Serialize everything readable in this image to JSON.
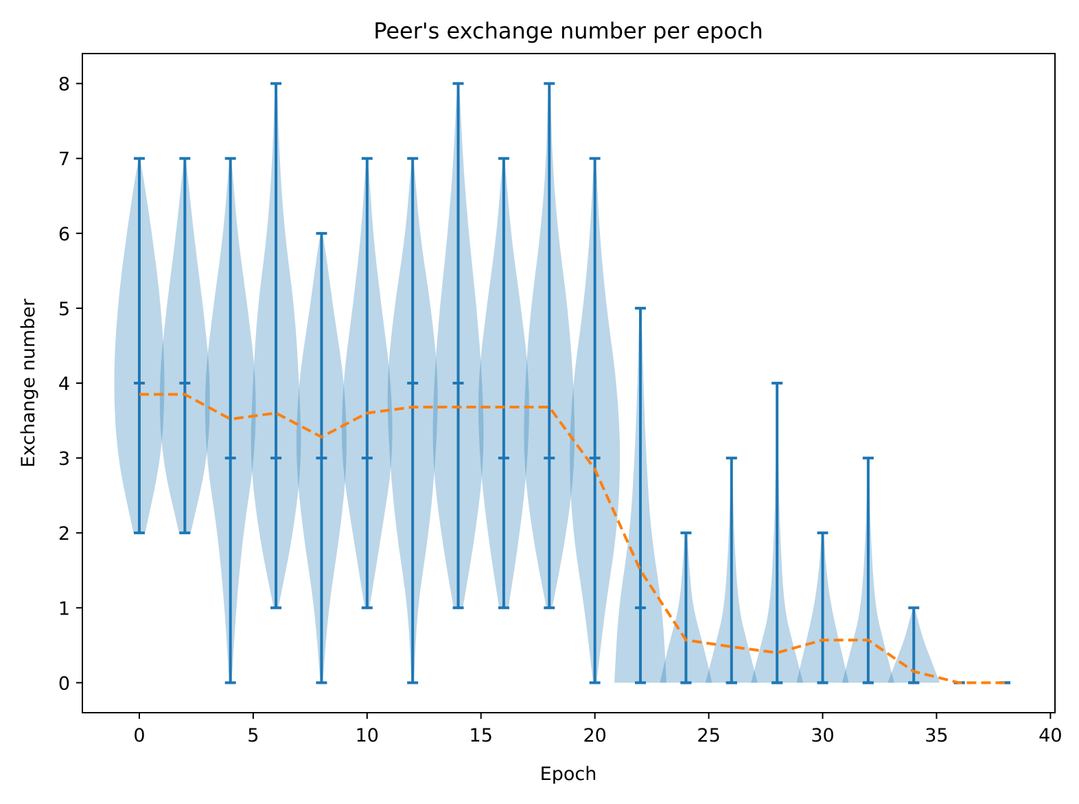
{
  "chart_data": {
    "type": "violin",
    "title": "Peer's exchange number per epoch",
    "xlabel": "Epoch",
    "ylabel": "Exchange number",
    "xlim": [
      -2.5,
      40.2
    ],
    "ylim": [
      -0.4,
      8.4
    ],
    "xticks": [
      0,
      5,
      10,
      15,
      20,
      25,
      30,
      35,
      40
    ],
    "yticks": [
      0,
      1,
      2,
      3,
      4,
      5,
      6,
      7,
      8
    ],
    "grid": false,
    "violins": [
      {
        "x": 0,
        "min": 2,
        "max": 7,
        "median": 4,
        "density": [
          [
            2,
            0.1
          ],
          [
            3,
            0.38
          ],
          [
            4,
            0.45
          ],
          [
            5,
            0.38
          ],
          [
            6,
            0.22
          ],
          [
            7,
            0.02
          ]
        ]
      },
      {
        "x": 2,
        "min": 2,
        "max": 7,
        "median": 4,
        "density": [
          [
            2,
            0.1
          ],
          [
            3,
            0.4
          ],
          [
            4,
            0.45
          ],
          [
            5,
            0.32
          ],
          [
            6,
            0.15
          ],
          [
            7,
            0.02
          ]
        ]
      },
      {
        "x": 4,
        "min": 0,
        "max": 7,
        "median": 3,
        "density": [
          [
            0,
            0.02
          ],
          [
            1,
            0.1
          ],
          [
            2,
            0.22
          ],
          [
            3,
            0.42
          ],
          [
            4,
            0.45
          ],
          [
            5,
            0.3
          ],
          [
            6,
            0.12
          ],
          [
            7,
            0.02
          ]
        ]
      },
      {
        "x": 6,
        "min": 1,
        "max": 8,
        "median": 3,
        "density": [
          [
            1,
            0.04
          ],
          [
            2,
            0.3
          ],
          [
            3,
            0.45
          ],
          [
            4,
            0.4
          ],
          [
            5,
            0.32
          ],
          [
            6,
            0.15
          ],
          [
            7,
            0.06
          ],
          [
            8,
            0.02
          ]
        ]
      },
      {
        "x": 8,
        "min": 0,
        "max": 6,
        "median": 3,
        "density": [
          [
            0,
            0.02
          ],
          [
            1,
            0.12
          ],
          [
            2,
            0.32
          ],
          [
            3,
            0.45
          ],
          [
            4,
            0.4
          ],
          [
            5,
            0.2
          ],
          [
            6,
            0.03
          ]
        ]
      },
      {
        "x": 10,
        "min": 1,
        "max": 7,
        "median": 3,
        "density": [
          [
            1,
            0.04
          ],
          [
            2,
            0.25
          ],
          [
            3,
            0.45
          ],
          [
            4,
            0.42
          ],
          [
            5,
            0.25
          ],
          [
            6,
            0.1
          ],
          [
            7,
            0.02
          ]
        ]
      },
      {
        "x": 12,
        "min": 0,
        "max": 7,
        "median": 4,
        "density": [
          [
            0,
            0.02
          ],
          [
            1,
            0.08
          ],
          [
            2,
            0.28
          ],
          [
            3,
            0.4
          ],
          [
            4,
            0.45
          ],
          [
            5,
            0.32
          ],
          [
            6,
            0.12
          ],
          [
            7,
            0.02
          ]
        ]
      },
      {
        "x": 14,
        "min": 1,
        "max": 8,
        "median": 4,
        "density": [
          [
            1,
            0.08
          ],
          [
            2,
            0.3
          ],
          [
            3,
            0.45
          ],
          [
            4,
            0.42
          ],
          [
            5,
            0.32
          ],
          [
            6,
            0.18
          ],
          [
            7,
            0.08
          ],
          [
            8,
            0.02
          ]
        ]
      },
      {
        "x": 16,
        "min": 1,
        "max": 7,
        "median": 3,
        "density": [
          [
            1,
            0.08
          ],
          [
            2,
            0.28
          ],
          [
            3,
            0.42
          ],
          [
            4,
            0.45
          ],
          [
            5,
            0.3
          ],
          [
            6,
            0.12
          ],
          [
            7,
            0.02
          ]
        ]
      },
      {
        "x": 18,
        "min": 1,
        "max": 8,
        "median": 3,
        "density": [
          [
            1,
            0.05
          ],
          [
            2,
            0.3
          ],
          [
            3,
            0.45
          ],
          [
            4,
            0.42
          ],
          [
            5,
            0.32
          ],
          [
            6,
            0.15
          ],
          [
            7,
            0.05
          ],
          [
            8,
            0.02
          ]
        ]
      },
      {
        "x": 20,
        "min": 0,
        "max": 7,
        "median": 3,
        "density": [
          [
            0,
            0.03
          ],
          [
            1,
            0.18
          ],
          [
            2,
            0.38
          ],
          [
            3,
            0.45
          ],
          [
            4,
            0.38
          ],
          [
            5,
            0.2
          ],
          [
            6,
            0.08
          ],
          [
            7,
            0.02
          ]
        ]
      },
      {
        "x": 22,
        "min": 0,
        "max": 5,
        "median": 1,
        "density": [
          [
            0,
            0.45
          ],
          [
            1,
            0.38
          ],
          [
            2,
            0.18
          ],
          [
            3,
            0.1
          ],
          [
            4,
            0.05
          ],
          [
            5,
            0.02
          ]
        ]
      },
      {
        "x": 24,
        "min": 0,
        "max": 2,
        "median": 0,
        "density": [
          [
            0,
            0.45
          ],
          [
            0.5,
            0.3
          ],
          [
            1,
            0.12
          ],
          [
            1.5,
            0.06
          ],
          [
            2,
            0.02
          ]
        ]
      },
      {
        "x": 26,
        "min": 0,
        "max": 3,
        "median": 0,
        "density": [
          [
            0,
            0.45
          ],
          [
            0.5,
            0.28
          ],
          [
            1,
            0.12
          ],
          [
            2,
            0.04
          ],
          [
            3,
            0.01
          ]
        ]
      },
      {
        "x": 28,
        "min": 0,
        "max": 4,
        "median": 0,
        "density": [
          [
            0,
            0.45
          ],
          [
            0.5,
            0.28
          ],
          [
            1,
            0.12
          ],
          [
            2,
            0.05
          ],
          [
            3,
            0.02
          ],
          [
            4,
            0.01
          ]
        ]
      },
      {
        "x": 30,
        "min": 0,
        "max": 2,
        "median": 0,
        "density": [
          [
            0,
            0.45
          ],
          [
            0.5,
            0.3
          ],
          [
            1,
            0.15
          ],
          [
            1.5,
            0.06
          ],
          [
            2,
            0.02
          ]
        ]
      },
      {
        "x": 32,
        "min": 0,
        "max": 3,
        "median": 0,
        "density": [
          [
            0,
            0.45
          ],
          [
            0.5,
            0.28
          ],
          [
            1,
            0.12
          ],
          [
            2,
            0.04
          ],
          [
            3,
            0.01
          ]
        ]
      },
      {
        "x": 34,
        "min": 0,
        "max": 1,
        "median": 0,
        "density": [
          [
            0,
            0.45
          ],
          [
            0.3,
            0.3
          ],
          [
            0.6,
            0.15
          ],
          [
            1,
            0.02
          ]
        ]
      },
      {
        "x": 36,
        "min": 0,
        "max": 0,
        "median": 0,
        "density": []
      },
      {
        "x": 38,
        "min": 0,
        "max": 0,
        "median": 0,
        "density": []
      }
    ],
    "mean_line": {
      "style": "dashed",
      "x": [
        0,
        2,
        4,
        6,
        8,
        10,
        12,
        14,
        16,
        18,
        20,
        22,
        24,
        26,
        28,
        30,
        32,
        34,
        36,
        38
      ],
      "y": [
        3.85,
        3.85,
        3.52,
        3.6,
        3.28,
        3.6,
        3.68,
        3.68,
        3.68,
        3.68,
        2.85,
        1.5,
        0.57,
        0.48,
        0.4,
        0.57,
        0.57,
        0.15,
        0,
        0
      ]
    },
    "colors": {
      "violin_body": "#1f77b4",
      "violin_lines": "#1f77b4",
      "mean_line": "#ff7f0e"
    }
  }
}
